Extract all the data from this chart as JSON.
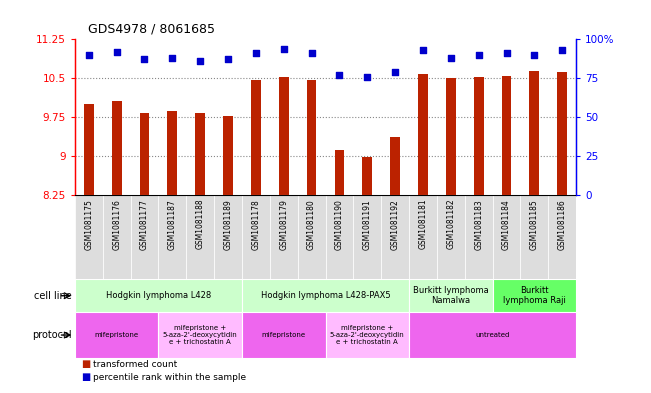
{
  "title": "GDS4978 / 8061685",
  "samples": [
    "GSM1081175",
    "GSM1081176",
    "GSM1081177",
    "GSM1081187",
    "GSM1081188",
    "GSM1081189",
    "GSM1081178",
    "GSM1081179",
    "GSM1081180",
    "GSM1081190",
    "GSM1081191",
    "GSM1081192",
    "GSM1081181",
    "GSM1081182",
    "GSM1081183",
    "GSM1081184",
    "GSM1081185",
    "GSM1081186"
  ],
  "bar_values": [
    10.0,
    10.05,
    9.82,
    9.87,
    9.83,
    9.77,
    10.47,
    10.53,
    10.47,
    9.12,
    8.98,
    9.37,
    10.58,
    10.5,
    10.52,
    10.55,
    10.63,
    10.62
  ],
  "dot_values": [
    90,
    92,
    87,
    88,
    86,
    87,
    91,
    94,
    91,
    77,
    76,
    79,
    93,
    88,
    90,
    91,
    90,
    93
  ],
  "ylim_left": [
    8.25,
    11.25
  ],
  "ylim_right": [
    0,
    100
  ],
  "yticks_left": [
    8.25,
    9.0,
    9.75,
    10.5,
    11.25
  ],
  "ytick_labels_left": [
    "8.25",
    "9",
    "9.75",
    "10.5",
    "11.25"
  ],
  "yticks_right": [
    0,
    25,
    50,
    75,
    100
  ],
  "ytick_labels_right": [
    "0",
    "25",
    "50",
    "75",
    "100%"
  ],
  "bar_color": "#bb2200",
  "dot_color": "#0000cc",
  "grid_color": "#888888",
  "cell_line_groups": [
    {
      "label": "Hodgkin lymphoma L428",
      "start": 0,
      "end": 6,
      "color": "#ccffcc"
    },
    {
      "label": "Hodgkin lymphoma L428-PAX5",
      "start": 6,
      "end": 12,
      "color": "#ccffcc"
    },
    {
      "label": "Burkitt lymphoma\nNamalwa",
      "start": 12,
      "end": 15,
      "color": "#ccffcc"
    },
    {
      "label": "Burkitt\nlymphoma Raji",
      "start": 15,
      "end": 18,
      "color": "#66ff66"
    }
  ],
  "protocol_groups": [
    {
      "label": "mifepristone",
      "start": 0,
      "end": 3,
      "color": "#ee66ee"
    },
    {
      "label": "mifepristone +\n5-aza-2'-deoxycytidin\ne + trichostatin A",
      "start": 3,
      "end": 6,
      "color": "#ffbbff"
    },
    {
      "label": "mifepristone",
      "start": 6,
      "end": 9,
      "color": "#ee66ee"
    },
    {
      "label": "mifepristone +\n5-aza-2'-deoxycytidin\ne + trichostatin A",
      "start": 9,
      "end": 12,
      "color": "#ffbbff"
    },
    {
      "label": "untreated",
      "start": 12,
      "end": 18,
      "color": "#ee66ee"
    }
  ],
  "legend_bar_label": "transformed count",
  "legend_dot_label": "percentile rank within the sample",
  "background_color": "#ffffff",
  "tick_bg_color": "#dddddd",
  "bar_width": 0.35
}
